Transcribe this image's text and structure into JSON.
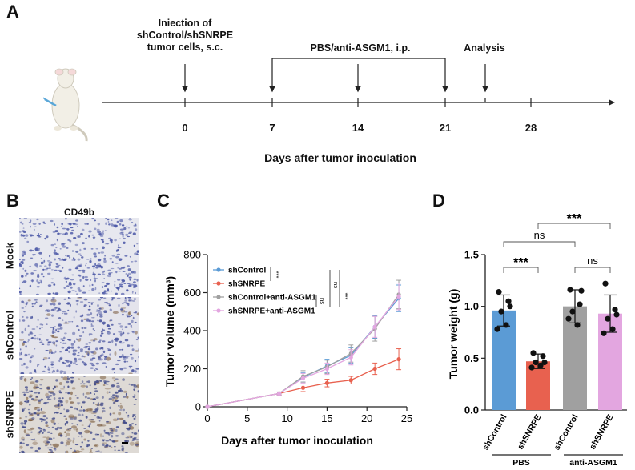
{
  "panelA": {
    "label": "A",
    "events": [
      {
        "lines": [
          "Iniection of",
          "shControl/shSNRPE",
          "tumor cells, s.c."
        ]
      },
      {
        "lines": [
          "PBS/anti-ASGM1, i.p."
        ]
      },
      {
        "lines": [
          "Analysis"
        ]
      }
    ],
    "ticks": [
      "0",
      "7",
      "14",
      "21",
      "28"
    ],
    "xlabel": "Days after tumor inoculation"
  },
  "panelB": {
    "label": "B",
    "title": "CD49b",
    "rows": [
      "Mock",
      "shControl",
      "shSNRPE"
    ]
  },
  "panelC": {
    "label": "C",
    "chart_data": {
      "type": "line",
      "xlabel": "Days after tumor inoculation",
      "ylabel": "Tumor volume (mm³)",
      "xlim": [
        0,
        25
      ],
      "ylim": [
        0,
        800
      ],
      "xticks": [
        "0",
        "5",
        "10",
        "15",
        "20",
        "25"
      ],
      "yticks": [
        "0",
        "200",
        "400",
        "600",
        "800"
      ],
      "x": [
        0,
        9,
        12,
        15,
        18,
        21,
        24
      ],
      "series": [
        {
          "name": "shControl",
          "color": "#5b9bd5",
          "values": [
            0,
            70,
            155,
            215,
            270,
            420,
            570
          ],
          "err": [
            0,
            8,
            25,
            35,
            40,
            60,
            70
          ]
        },
        {
          "name": "shSNRPE",
          "color": "#e8614f",
          "values": [
            0,
            70,
            100,
            125,
            140,
            200,
            250
          ],
          "err": [
            0,
            8,
            20,
            20,
            20,
            30,
            55
          ]
        },
        {
          "name": "shControl+anti-ASGM1",
          "color": "#a0a0a0",
          "values": [
            0,
            70,
            160,
            210,
            280,
            410,
            590
          ],
          "err": [
            0,
            8,
            30,
            35,
            45,
            65,
            75
          ]
        },
        {
          "name": "shSNRPE+anti-ASGM1",
          "color": "#e3a6e0",
          "values": [
            0,
            70,
            150,
            200,
            260,
            420,
            580
          ],
          "err": [
            0,
            8,
            25,
            30,
            40,
            55,
            70
          ]
        }
      ],
      "significance": [
        "***",
        "ns",
        "***",
        "ns"
      ],
      "legend": "top-left"
    }
  },
  "panelD": {
    "label": "D",
    "chart_data": {
      "type": "bar",
      "ylabel": "Tumor weight (g)",
      "ylim": [
        0,
        1.5
      ],
      "yticks": [
        "0.0",
        "0.5",
        "1.0",
        "1.5"
      ],
      "categories": [
        "shControl",
        "shSNRPE",
        "shControl",
        "shSNRPE"
      ],
      "groups": [
        "PBS",
        "anti-ASGM1"
      ],
      "values": [
        0.96,
        0.47,
        1.0,
        0.93
      ],
      "err": [
        0.15,
        0.07,
        0.16,
        0.18
      ],
      "colors": [
        "#5b9bd5",
        "#e8614f",
        "#a0a0a0",
        "#e3a6e0"
      ],
      "points": [
        [
          1.14,
          1.05,
          0.95,
          0.82,
          0.78,
          1.0
        ],
        [
          0.55,
          0.52,
          0.46,
          0.43,
          0.41,
          0.46
        ],
        [
          1.16,
          1.02,
          0.95,
          0.82,
          0.88,
          1.15
        ],
        [
          1.22,
          0.97,
          0.88,
          0.78,
          0.74,
          0.92
        ]
      ],
      "comparisons": [
        {
          "label": "***"
        },
        {
          "label": "ns"
        },
        {
          "label": "ns"
        },
        {
          "label": "***"
        }
      ]
    }
  }
}
